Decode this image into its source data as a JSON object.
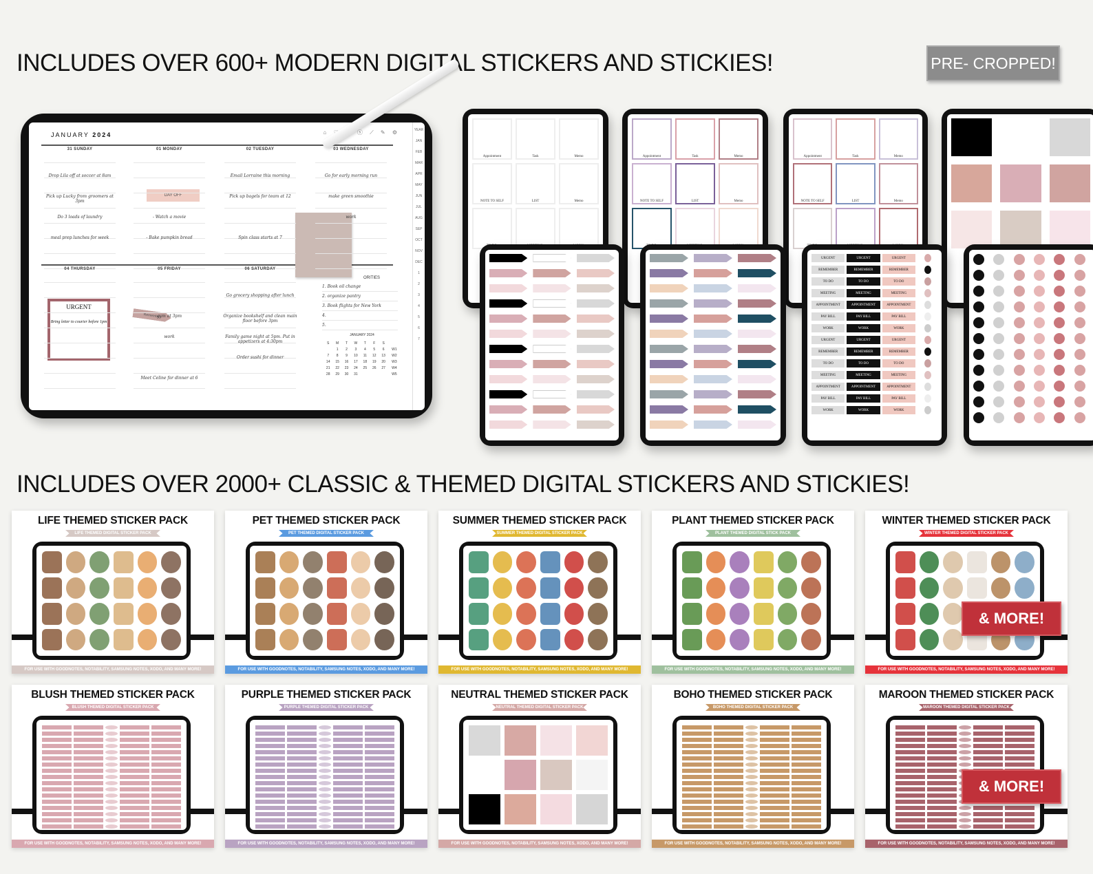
{
  "headline_top": "INCLUDES OVER 600+ MODERN DIGITAL STICKERS AND STICKIES!",
  "badge": "PRE- CROPPED!",
  "headline_bottom": "INCLUDES OVER 2000+ CLASSIC & THEMED DIGITAL STICKERS AND STICKIES!",
  "planner": {
    "month": "JANUARY",
    "year": "2024",
    "icons": "⌂ ♡ ⊙ ⓢ ⟋ ✎ ⚙",
    "months": [
      "YEAR",
      "JAN",
      "FEB",
      "MAR",
      "APR",
      "MAY",
      "JUN",
      "JUL",
      "AUG",
      "SEP",
      "OCT",
      "NOV",
      "DEC",
      "1",
      "2",
      "3",
      "4",
      "5",
      "6",
      "7"
    ],
    "days": [
      {
        "label": "31 SUNDAY",
        "entries": [
          "Drop Lila off at soccer at 8am",
          "Pick up Lucky from groomers at 3pm",
          "Do 3 loads of laundry",
          "meal prep lunches for week"
        ]
      },
      {
        "label": "01 MONDAY",
        "entries": [
          "",
          "",
          "- Watch a movie",
          "- Bake pumpkin bread"
        ]
      },
      {
        "label": "02 TUESDAY",
        "entries": [
          "Email Lorraine this morning",
          "Pick up bagels for team at 12",
          "",
          "Spin class starts at 7"
        ]
      },
      {
        "label": "03 WEDNESDAY",
        "entries": [
          "Go for early morning run",
          "make green smoothie",
          "work",
          ""
        ]
      },
      {
        "label": "04 THURSDAY",
        "entries": []
      },
      {
        "label": "05 FRIDAY",
        "entries": [
          "",
          "gym at 3pm",
          "work",
          "",
          "Meet Celine for dinner at 6"
        ]
      },
      {
        "label": "06 SATURDAY",
        "entries": [
          "Go grocery shopping after lunch",
          "Organize bookshelf and clean main floor before 3pm",
          "Family game night at 5pm. Put in appetizers at 4:30pm",
          "Order sushi for dinner"
        ]
      }
    ],
    "day_off": "DAY OFF",
    "urgent_title": "URGENT",
    "urgent_note": "Bring letter to courier before 1pm",
    "remember": "Remember",
    "priorities_label": "ORITIES",
    "priorities": [
      "1.  Book oil change",
      "2.  organize pantry",
      "3.  Book flights for New York",
      "4.",
      "5."
    ],
    "calendar": {
      "title": "JANUARY 2024",
      "head": [
        "S",
        "M",
        "T",
        "W",
        "T",
        "F",
        "S",
        ""
      ],
      "rows": [
        [
          "",
          "1",
          "2",
          "3",
          "4",
          "5",
          "6",
          "W1"
        ],
        [
          "7",
          "8",
          "9",
          "10",
          "11",
          "12",
          "13",
          "W2"
        ],
        [
          "14",
          "15",
          "16",
          "17",
          "18",
          "19",
          "20",
          "W3"
        ],
        [
          "21",
          "22",
          "23",
          "24",
          "25",
          "26",
          "27",
          "W4"
        ],
        [
          "28",
          "29",
          "30",
          "31",
          "",
          "",
          "",
          "W5"
        ]
      ]
    }
  },
  "sticky_labels": [
    "Appointment",
    "Task",
    "Memo",
    "NOTE TO SELF",
    "LIST",
    "Memo",
    "TO DO:",
    "MEETING:",
    "WORK:"
  ],
  "label_stickers": [
    "URGENT",
    "REMEMBER",
    "TO DO",
    "MEETING",
    "APPOINTMENT",
    "PAY BILL",
    "WORK"
  ],
  "palettes": {
    "blush": [
      "#000000",
      "#ffffff",
      "#d8d8d8",
      "#d7a79b",
      "#d9aeb6",
      "#d0a4a0",
      "#e9c9c4",
      "#e5d3cf",
      "#f2d9dc",
      "#f4e3e6",
      "#ddd2cc",
      "#f6e9ea"
    ],
    "cool": [
      "#9aa5a8",
      "#b7aec8",
      "#b07f86",
      "#c9aeb8",
      "#8a7aa4",
      "#d6a09b",
      "#1f4f63",
      "#e3d0e6",
      "#f0d3bb",
      "#c9d4e3",
      "#f3e6ef",
      "#b96d6d"
    ],
    "icons": [
      "#111111",
      "#d0d0d0",
      "#d8a3a3",
      "#e7b6b6",
      "#c9777c"
    ]
  },
  "packs": [
    {
      "title": "LIFE THEMED STICKER PACK",
      "ribbon": "LIFE THEMED DIGITAL STICKER PACK",
      "color": "#d6c9c5"
    },
    {
      "title": "PET THEMED STICKER PACK",
      "ribbon": "PET THEMED DIGITAL STICKER PACK",
      "color": "#5b9be0"
    },
    {
      "title": "SUMMER THEMED STICKER PACK",
      "ribbon": "SUMMER THEMED DIGITAL STICKER PACK",
      "color": "#e0b831"
    },
    {
      "title": "PLANT THEMED STICKER PACK",
      "ribbon": "PLANT THEMED DIGITAL STICK PACK",
      "color": "#9fc09e"
    },
    {
      "title": "WINTER THEMED STICKER PACK",
      "ribbon": "WINTER THEMED DIGITAL STICKER PACK",
      "color": "#e6333b"
    },
    {
      "title": "BLUSH THEMED STICKER PACK",
      "ribbon": "BLUSH THEMED DIGITAL STICKER PACK",
      "color": "#d9a8b0"
    },
    {
      "title": "PURPLE THEMED STICKER PACK",
      "ribbon": "PURPLE THEMED DIGITAL STICKER PACK",
      "color": "#b9a3c2"
    },
    {
      "title": "NEUTRAL THEMED STICKER PACK",
      "ribbon": "NEUTRAL THEMED DIGITAL STICKER PACK",
      "color": "#d4a8a6"
    },
    {
      "title": "BOHO THEMED STICKER PACK",
      "ribbon": "BOHO THEMED DIGITAL STICKER PACK",
      "color": "#c79968"
    },
    {
      "title": "MAROON THEMED STICKER PACK",
      "ribbon": "MAROON THEMED DIGITAL STICKER PACK",
      "color": "#a8636b"
    }
  ],
  "pack_footer": "FOR USE WITH GOODNOTES, NOTABILITY, SAMSUNG NOTES, XODO, AND MANY MORE!",
  "more_label": "& MORE!"
}
